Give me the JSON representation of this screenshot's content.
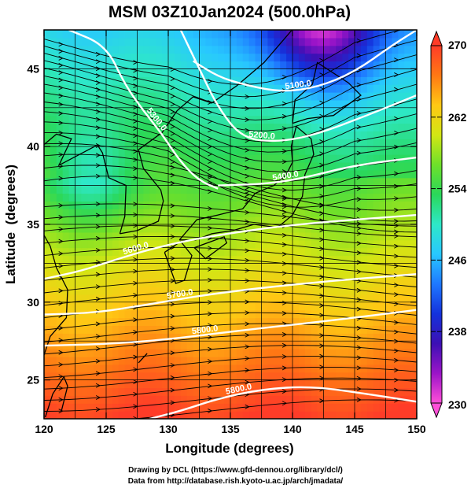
{
  "chart_data": {
    "type": "heatmap",
    "title": "MSM 03Z10Jan2024 (500.0hPa)",
    "xlabel": "Longitude (degrees)",
    "ylabel": "Latitude  (degrees)",
    "xlim": [
      120,
      150
    ],
    "ylim": [
      22.5,
      47.5
    ],
    "xticks": [
      "120",
      "125",
      "130",
      "135",
      "140",
      "145",
      "150"
    ],
    "yticks": [
      "25",
      "30",
      "35",
      "40",
      "45"
    ],
    "colorbar": {
      "min": 230,
      "max": 270,
      "ticks": [
        "230",
        "238",
        "246",
        "254",
        "262",
        "270"
      ],
      "colors": [
        "#ff4fd8",
        "#9b14c8",
        "#3c10b4",
        "#1432dc",
        "#1e78ff",
        "#28c8ff",
        "#2ee8c8",
        "#2ad85a",
        "#6ee02a",
        "#d2e614",
        "#ffc814",
        "#ff7814",
        "#ff3c28"
      ]
    },
    "contours": [
      {
        "label": "5100.0",
        "lat": [
          45.5,
          44.5,
          44.0,
          43.5,
          43.8,
          44.8,
          46.5,
          47.5
        ],
        "lon": [
          132.0,
          134.0,
          136.0,
          139.0,
          142.0,
          145.0,
          148.0,
          150.0
        ]
      },
      {
        "label": "5200.0",
        "lat": [
          47.5,
          45.0,
          42.5,
          40.5,
          40.3,
          40.8,
          42.0,
          43.3
        ],
        "lon": [
          131.0,
          132.5,
          134.0,
          136.0,
          139.0,
          142.0,
          146.0,
          150.0
        ]
      },
      {
        "label": "5300.0",
        "lat": [
          47.5,
          46.5,
          44.0,
          42.3,
          40.8,
          39.0,
          37.8,
          37.3
        ],
        "lon": [
          122.0,
          125.0,
          126.5,
          128.0,
          129.5,
          131.0,
          132.5,
          134.0
        ]
      },
      {
        "label": "5400.0",
        "lat": [
          37.5,
          37.6,
          38.0,
          38.8,
          39.3
        ],
        "lon": [
          134.0,
          138.0,
          141.0,
          145.0,
          150.0
        ]
      },
      {
        "label": "5600.0",
        "lat": [
          31.5,
          32.0,
          32.8,
          33.5,
          34.2,
          35.0,
          35.6
        ],
        "lon": [
          120.0,
          123.0,
          126.0,
          129.0,
          133.0,
          140.0,
          150.0
        ]
      },
      {
        "label": "5700.0",
        "lat": [
          29.2,
          29.3,
          29.8,
          30.6,
          31.3,
          31.8
        ],
        "lon": [
          120.0,
          124.0,
          128.0,
          134.0,
          142.0,
          150.0
        ]
      },
      {
        "label": "5800.0",
        "lat": [
          27.2,
          27.3,
          27.6,
          28.2,
          28.8,
          29.5
        ],
        "lon": [
          120.0,
          125.0,
          130.0,
          136.0,
          143.0,
          150.0
        ]
      },
      {
        "label": "5800.0",
        "lat": [
          22.5,
          23.0,
          23.8,
          24.4,
          24.6,
          24.1,
          23.6
        ],
        "lon": [
          128.5,
          131.0,
          134.0,
          137.5,
          141.5,
          146.0,
          150.0
        ]
      }
    ]
  },
  "credits": {
    "line1": "Drawing by DCL (https://www.gfd-dennou.org/library/dcl/)",
    "line2": "Data from http://database.rish.kyoto-u.ac.jp/arch/jmadata/"
  }
}
